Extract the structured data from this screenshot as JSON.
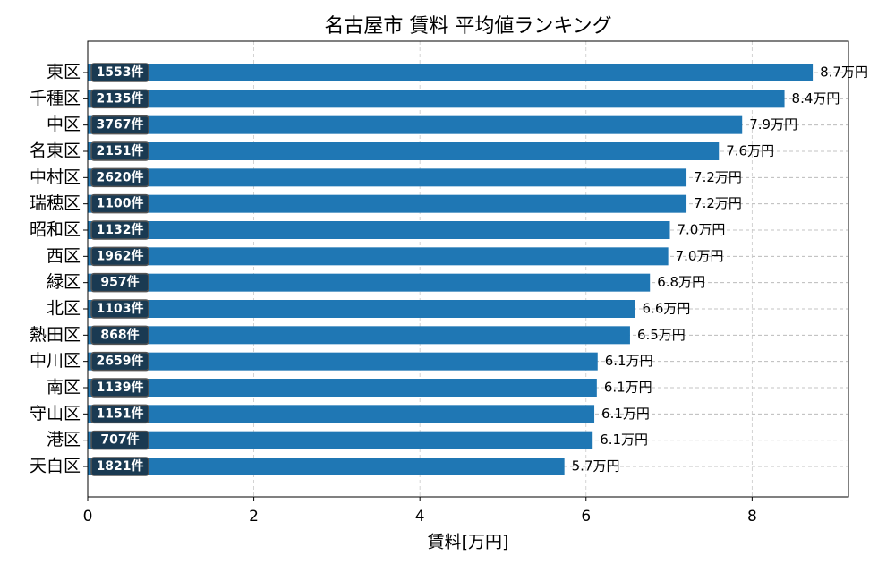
{
  "chart_data": {
    "type": "barh",
    "title": "名古屋市 賃料 平均値ランキング",
    "xlabel": "賃料[万円]",
    "categories": [
      "東区",
      "千種区",
      "中区",
      "名東区",
      "中村区",
      "瑞穂区",
      "昭和区",
      "西区",
      "緑区",
      "北区",
      "熱田区",
      "中川区",
      "南区",
      "守山区",
      "港区",
      "天白区"
    ],
    "values": [
      8.73,
      8.39,
      7.88,
      7.6,
      7.21,
      7.21,
      7.01,
      6.99,
      6.77,
      6.59,
      6.53,
      6.14,
      6.13,
      6.1,
      6.08,
      5.74
    ],
    "value_labels": [
      "8.7万円",
      "8.4万円",
      "7.9万円",
      "7.6万円",
      "7.2万円",
      "7.2万円",
      "7.0万円",
      "7.0万円",
      "6.8万円",
      "6.6万円",
      "6.5万円",
      "6.1万円",
      "6.1万円",
      "6.1万円",
      "6.1万円",
      "5.7万円"
    ],
    "count_labels": [
      "1553件",
      "2135件",
      "3767件",
      "2151件",
      "2620件",
      "1100件",
      "1132件",
      "1962件",
      "957件",
      "1103件",
      "868件",
      "2659件",
      "1139件",
      "1151件",
      "707件",
      "1821件"
    ],
    "color": "#1f77b4",
    "xlim": [
      0,
      9.16
    ],
    "xticks": [
      0,
      2,
      4,
      6,
      8
    ],
    "grid": true
  }
}
